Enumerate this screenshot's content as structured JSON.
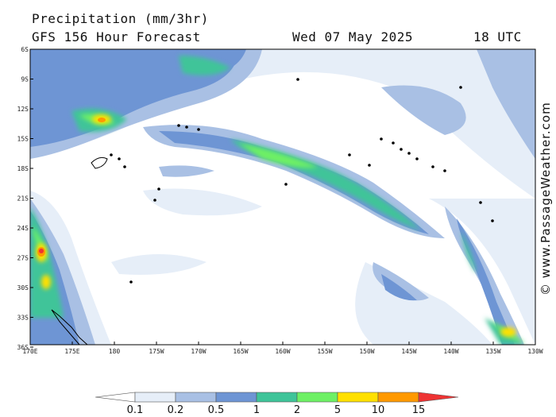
{
  "header": {
    "title": "Precipitation (mm/3hr)",
    "subtitle": "GFS 156 Hour Forecast",
    "date": "Wed 07 May 2025",
    "time": "18 UTC"
  },
  "watermark": "© www.PassageWeather.com",
  "map": {
    "lat_labels": [
      "6S",
      "9S",
      "12S",
      "15S",
      "18S",
      "21S",
      "24S",
      "27S",
      "30S",
      "33S",
      "36S"
    ],
    "lon_labels": [
      "170E",
      "175E",
      "180",
      "175W",
      "170W",
      "165W",
      "160W",
      "155W",
      "150W",
      "145W",
      "140W",
      "135W",
      "130W"
    ],
    "lat_range": [
      -6,
      -39
    ],
    "lon_range": [
      170,
      230
    ]
  },
  "legend": {
    "levels": [
      "0.1",
      "0.2",
      "0.5",
      "1",
      "2",
      "5",
      "10",
      "15"
    ],
    "colors": [
      "#ffffff",
      "#e6eef8",
      "#a9c0e4",
      "#6e95d4",
      "#3fc499",
      "#6ef065",
      "#ffe000",
      "#ff9900",
      "#ee3333"
    ]
  }
}
